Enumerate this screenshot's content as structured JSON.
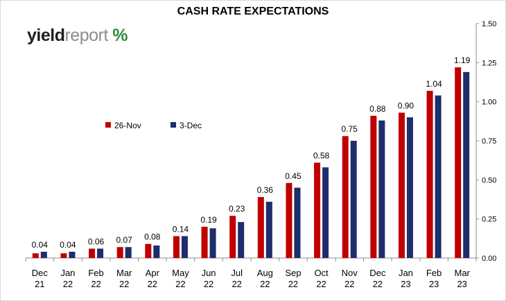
{
  "brand": {
    "logo_text_bold": "yield",
    "logo_text_light": "report",
    "logo_pct_symbol": "%",
    "colors": {
      "pct_green": "#2e8b3a",
      "pct_red": "#c00000"
    }
  },
  "chart_data": {
    "type": "bar",
    "title": "CASH RATE EXPECTATIONS",
    "categories": [
      "Dec 21",
      "Jan 22",
      "Feb 22",
      "Mar 22",
      "Apr 22",
      "May 22",
      "Jun 22",
      "Jul 22",
      "Aug 22",
      "Sep 22",
      "Oct 22",
      "Nov 22",
      "Dec 22",
      "Jan 23",
      "Feb 23",
      "Mar 23"
    ],
    "category_lines": [
      [
        "Dec",
        "21"
      ],
      [
        "Jan",
        "22"
      ],
      [
        "Feb",
        "22"
      ],
      [
        "Mar",
        "22"
      ],
      [
        "Apr",
        "22"
      ],
      [
        "May",
        "22"
      ],
      [
        "Jun",
        "22"
      ],
      [
        "Jul",
        "22"
      ],
      [
        "Aug",
        "22"
      ],
      [
        "Sep",
        "22"
      ],
      [
        "Oct",
        "22"
      ],
      [
        "Nov",
        "22"
      ],
      [
        "Dec",
        "22"
      ],
      [
        "Jan",
        "23"
      ],
      [
        "Feb",
        "23"
      ],
      [
        "Mar",
        "23"
      ]
    ],
    "series": [
      {
        "name": "26-Nov",
        "color": "#c00000",
        "values": [
          0.03,
          0.03,
          0.06,
          0.07,
          0.09,
          0.14,
          0.2,
          0.27,
          0.39,
          0.48,
          0.61,
          0.78,
          0.91,
          0.93,
          1.07,
          1.22
        ]
      },
      {
        "name": "3-Dec",
        "color": "#1f2d6b",
        "values": [
          0.04,
          0.04,
          0.06,
          0.07,
          0.08,
          0.14,
          0.19,
          0.23,
          0.36,
          0.45,
          0.58,
          0.75,
          0.88,
          0.9,
          1.04,
          1.19
        ]
      }
    ],
    "data_labels": [
      "0.04",
      "0.04",
      "0.06",
      "0.07",
      "0.08",
      "0.14",
      "0.19",
      "0.23",
      "0.36",
      "0.45",
      "0.58",
      "0.75",
      "0.88",
      "0.90",
      "1.04",
      "1.19"
    ],
    "ylim": [
      0,
      1.5
    ],
    "y_ticks": [
      "0.00",
      "0.25",
      "0.50",
      "0.75",
      "1.00",
      "1.25",
      "1.50"
    ],
    "y_axis_side": "right",
    "grid": false,
    "legend_position": "upper-left"
  }
}
